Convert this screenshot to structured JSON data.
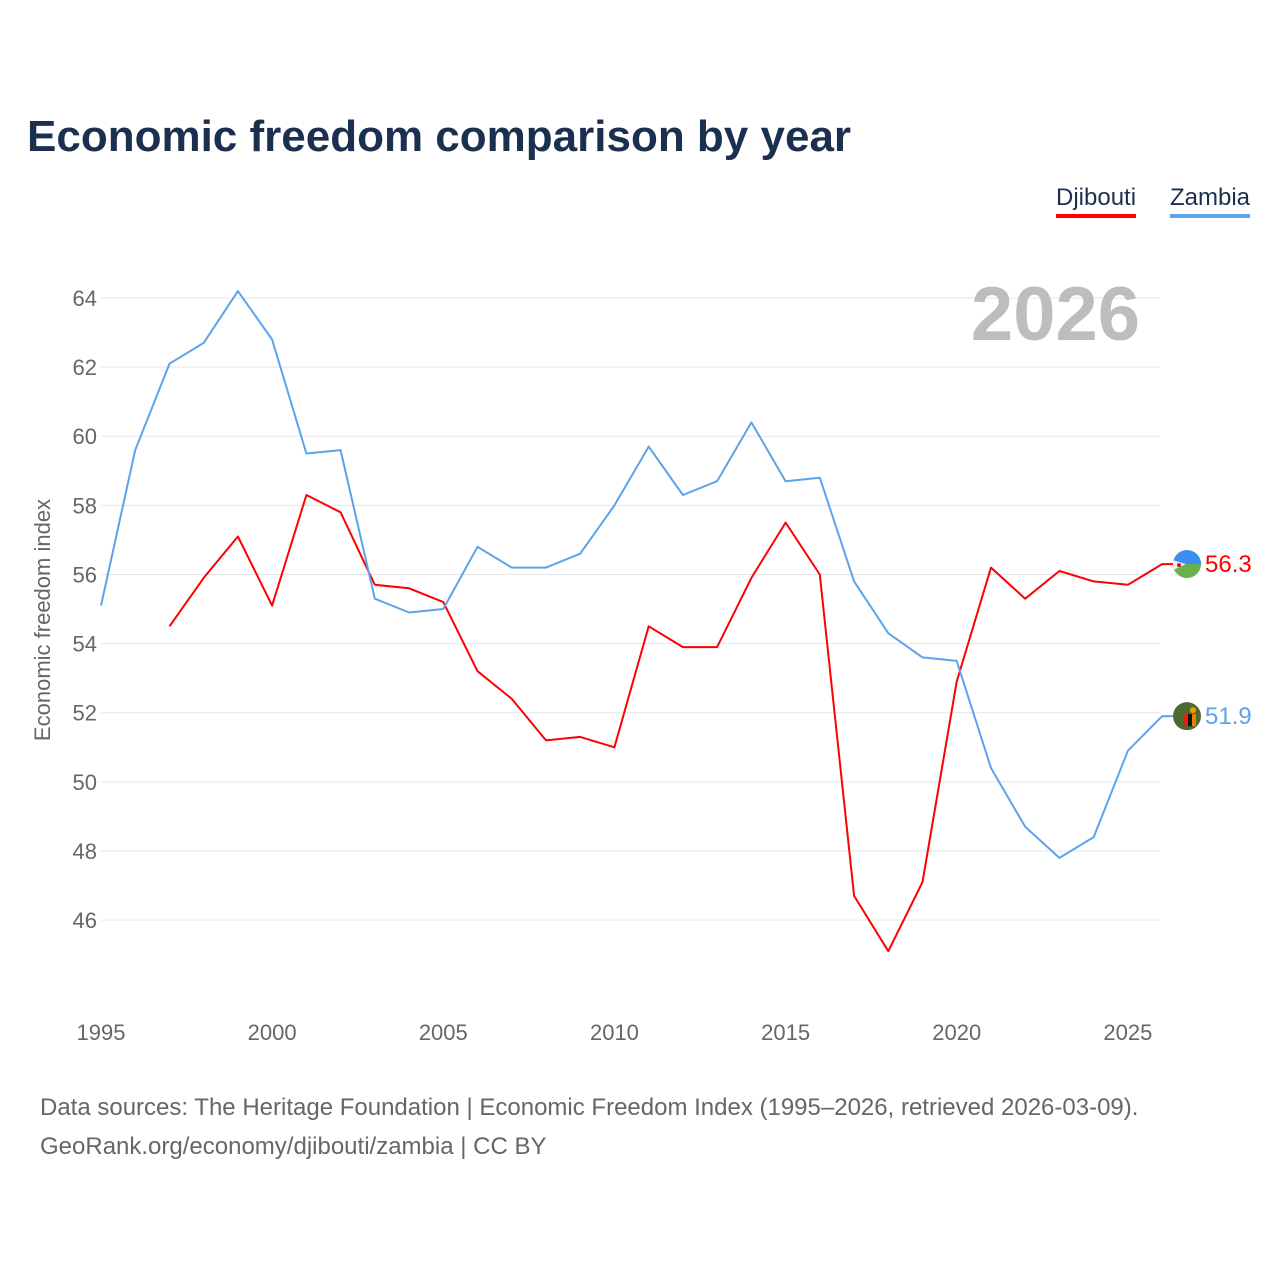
{
  "chart_data": {
    "type": "line",
    "title": "Economic freedom comparison by year",
    "watermark_year": "2026",
    "ylabel": "Economic freedom index",
    "xlabel": "",
    "ylim": [
      44,
      65
    ],
    "xlim": [
      1995,
      2026
    ],
    "yticks": [
      46,
      48,
      50,
      52,
      54,
      56,
      58,
      60,
      62,
      64
    ],
    "xticks": [
      1995,
      2000,
      2005,
      2010,
      2015,
      2020,
      2025
    ],
    "grid": true,
    "legend_position": "top-right",
    "series": [
      {
        "name": "Djibouti",
        "color": "#ff0000",
        "end_label": "56.3",
        "x": [
          1997,
          1998,
          1999,
          2000,
          2001,
          2002,
          2003,
          2004,
          2005,
          2006,
          2007,
          2008,
          2009,
          2010,
          2011,
          2012,
          2013,
          2014,
          2015,
          2016,
          2017,
          2018,
          2019,
          2020,
          2021,
          2022,
          2023,
          2024,
          2025,
          2026
        ],
        "values": [
          54.5,
          55.9,
          57.1,
          55.1,
          58.3,
          57.8,
          55.7,
          55.6,
          55.2,
          53.2,
          52.4,
          51.2,
          51.3,
          51.0,
          54.5,
          53.9,
          53.9,
          55.9,
          57.5,
          56.0,
          46.7,
          45.1,
          47.1,
          52.9,
          56.2,
          55.3,
          56.1,
          55.8,
          55.7,
          56.3
        ]
      },
      {
        "name": "Zambia",
        "color": "#5ba4ec",
        "end_label": "51.9",
        "x": [
          1995,
          1996,
          1997,
          1998,
          1999,
          2000,
          2001,
          2002,
          2003,
          2004,
          2005,
          2006,
          2007,
          2008,
          2009,
          2010,
          2011,
          2012,
          2013,
          2014,
          2015,
          2016,
          2017,
          2018,
          2019,
          2020,
          2021,
          2022,
          2023,
          2024,
          2025,
          2026
        ],
        "values": [
          55.1,
          59.6,
          62.1,
          62.7,
          64.2,
          62.8,
          59.5,
          59.6,
          55.3,
          54.9,
          55.0,
          56.8,
          56.2,
          56.2,
          56.6,
          58.0,
          59.7,
          58.3,
          58.7,
          60.4,
          58.7,
          58.8,
          55.8,
          54.3,
          53.6,
          53.5,
          50.4,
          48.7,
          47.8,
          48.4,
          50.9,
          51.9
        ]
      }
    ]
  },
  "footer": {
    "line1": "Data sources: The Heritage Foundation | Economic Freedom Index (1995–2026, retrieved 2026-03-09).",
    "line2": "GeoRank.org/economy/djibouti/zambia | CC BY"
  }
}
